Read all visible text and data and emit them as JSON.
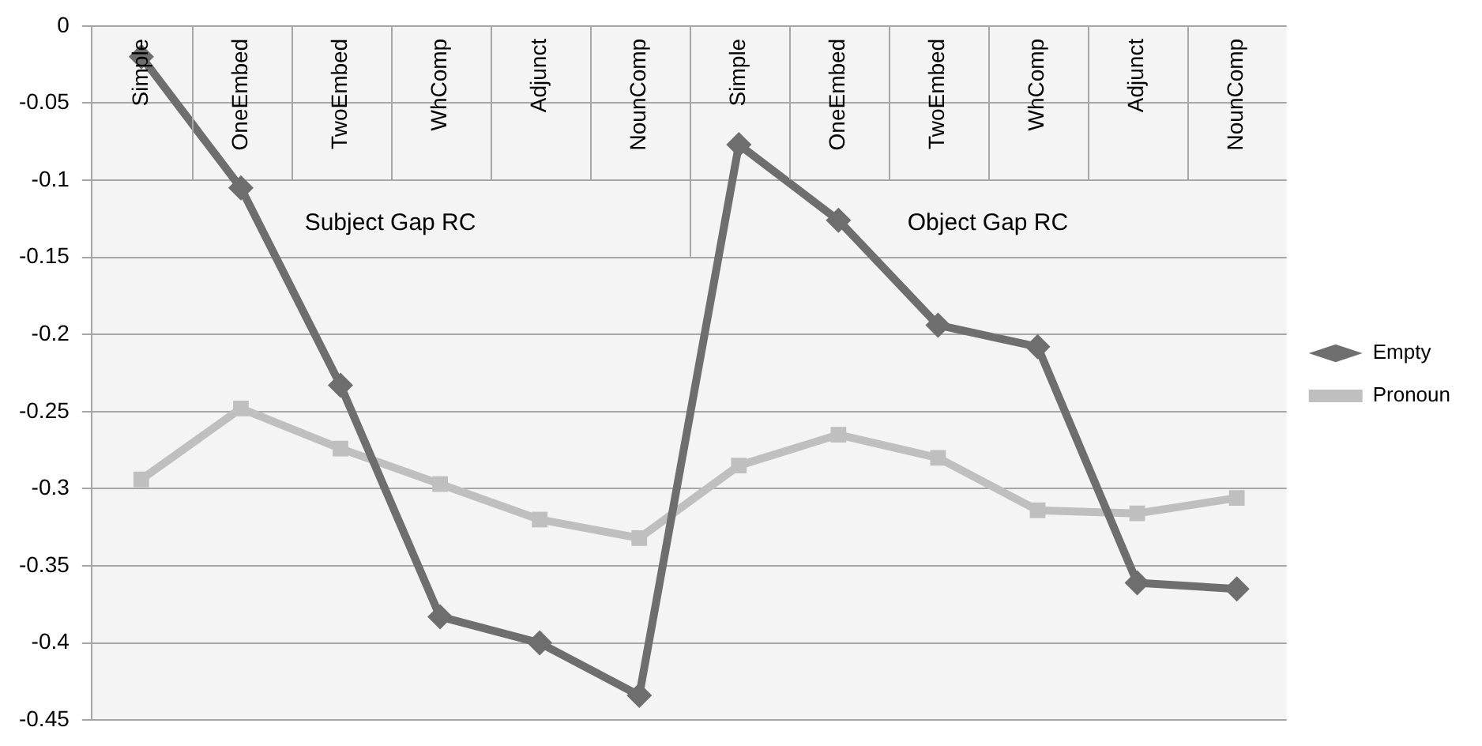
{
  "chart_data": {
    "type": "line",
    "categories": [
      "Simple",
      "OneEmbed",
      "TwoEmbed",
      "WhComp",
      "Adjunct",
      "NounComp",
      "Simple",
      "OneEmbed",
      "TwoEmbed",
      "WhComp",
      "Adjunct",
      "NounComp"
    ],
    "series": [
      {
        "name": "Empty",
        "color": "#6e6e6e",
        "marker": "diamond",
        "values": [
          -0.02,
          -0.105,
          -0.233,
          -0.383,
          -0.4,
          -0.434,
          -0.077,
          -0.126,
          -0.194,
          -0.208,
          -0.361,
          -0.365
        ]
      },
      {
        "name": "Pronoun",
        "color": "#bfbfbf",
        "marker": "square",
        "values": [
          -0.294,
          -0.248,
          -0.274,
          -0.297,
          -0.32,
          -0.332,
          -0.285,
          -0.265,
          -0.28,
          -0.314,
          -0.316,
          -0.306
        ]
      }
    ],
    "annotations": [
      "Subject Gap RC",
      "Object Gap RC"
    ],
    "ylim": [
      -0.45,
      0
    ],
    "yticks": [
      0,
      -0.05,
      -0.1,
      -0.15,
      -0.2,
      -0.25,
      -0.3,
      -0.35,
      -0.4,
      -0.45
    ],
    "grid": "y",
    "legend": "right"
  }
}
